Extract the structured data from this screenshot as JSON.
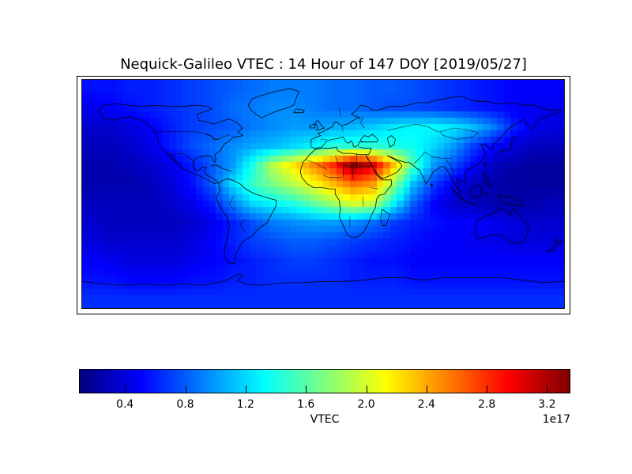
{
  "chart": {
    "title": "Nequick-Galileo VTEC : 14 Hour of 147 DOY [2019/05/27]",
    "colorbar": {
      "label": "VTEC",
      "exponent": "1e17",
      "tick_labels": [
        "0.4",
        "0.8",
        "1.2",
        "1.6",
        "2.0",
        "2.4",
        "2.8",
        "3.2"
      ],
      "vmin": 0.1,
      "vmax": 3.35,
      "colormap": "jet"
    }
  },
  "chart_data": {
    "type": "heatmap",
    "title": "Nequick-Galileo VTEC : 14 Hour of 147 DOY [2019/05/27]",
    "description": "Global ionospheric vertical TEC map (pcolormesh over world coastlines), values in 1e17 electrons/m^2",
    "legend_position": "bottom horizontal colorbar",
    "colorbar_label": "VTEC",
    "colorbar_scale": "1e17",
    "colorbar_ticks": [
      0.4,
      0.8,
      1.2,
      1.6,
      2.0,
      2.4,
      2.8,
      3.2
    ],
    "value_range": [
      0.1,
      3.35
    ],
    "map_extent": {
      "lon": [
        -180,
        180
      ],
      "lat": [
        -90,
        90
      ]
    },
    "grid": {
      "units": "1e17",
      "lon_centers_start": -172.5,
      "lon_step": 15,
      "lat_centers_start": 82.5,
      "lat_step": -15,
      "values": [
        [
          0.55,
          0.55,
          0.6,
          0.6,
          0.65,
          0.7,
          0.75,
          0.8,
          0.85,
          0.9,
          0.9,
          0.9,
          0.85,
          0.85,
          0.8,
          0.8,
          0.75,
          0.7,
          0.65,
          0.6,
          0.55,
          0.5,
          0.5,
          0.5
        ],
        [
          0.45,
          0.5,
          0.55,
          0.6,
          0.65,
          0.7,
          0.75,
          0.85,
          0.9,
          0.95,
          0.95,
          0.9,
          0.85,
          0.85,
          0.8,
          0.75,
          0.75,
          0.7,
          0.65,
          0.6,
          0.55,
          0.5,
          0.45,
          0.45
        ],
        [
          0.35,
          0.35,
          0.4,
          0.5,
          0.6,
          0.7,
          0.75,
          0.8,
          0.9,
          0.95,
          1.0,
          1.0,
          1.05,
          1.1,
          1.15,
          1.25,
          1.3,
          1.3,
          1.25,
          1.1,
          0.9,
          0.6,
          0.45,
          0.4
        ],
        [
          0.3,
          0.3,
          0.35,
          0.45,
          0.6,
          0.75,
          0.85,
          0.95,
          1.05,
          1.1,
          1.2,
          1.3,
          1.45,
          1.45,
          1.45,
          1.4,
          1.35,
          1.2,
          1.0,
          0.7,
          0.5,
          0.4,
          0.3,
          0.3
        ],
        [
          0.25,
          0.25,
          0.3,
          0.35,
          0.45,
          0.6,
          0.8,
          1.0,
          1.4,
          1.9,
          2.2,
          2.5,
          2.8,
          3.35,
          3.05,
          2.35,
          1.55,
          1.0,
          0.75,
          0.5,
          0.3,
          0.25,
          0.2,
          0.2
        ],
        [
          0.25,
          0.25,
          0.25,
          0.3,
          0.4,
          0.55,
          0.8,
          1.2,
          1.5,
          1.7,
          1.9,
          2.1,
          2.35,
          2.6,
          2.45,
          1.8,
          1.1,
          0.7,
          0.45,
          0.3,
          0.25,
          0.2,
          0.2,
          0.2
        ],
        [
          0.3,
          0.3,
          0.3,
          0.3,
          0.35,
          0.45,
          0.6,
          0.9,
          1.2,
          1.3,
          1.4,
          1.6,
          1.8,
          2.0,
          1.9,
          1.3,
          0.8,
          0.5,
          0.35,
          0.3,
          0.25,
          0.25,
          0.25,
          0.3
        ],
        [
          0.35,
          0.3,
          0.3,
          0.3,
          0.3,
          0.35,
          0.45,
          0.6,
          0.75,
          0.9,
          0.95,
          1.0,
          1.0,
          0.95,
          0.85,
          0.7,
          0.6,
          0.55,
          0.5,
          0.5,
          0.45,
          0.4,
          0.35,
          0.35
        ],
        [
          0.4,
          0.35,
          0.35,
          0.35,
          0.35,
          0.4,
          0.5,
          0.6,
          0.7,
          0.75,
          0.8,
          0.8,
          0.75,
          0.7,
          0.65,
          0.6,
          0.55,
          0.5,
          0.5,
          0.45,
          0.45,
          0.4,
          0.4,
          0.4
        ],
        [
          0.5,
          0.45,
          0.4,
          0.4,
          0.4,
          0.45,
          0.5,
          0.55,
          0.6,
          0.65,
          0.7,
          0.7,
          0.65,
          0.6,
          0.55,
          0.55,
          0.5,
          0.5,
          0.5,
          0.5,
          0.5,
          0.5,
          0.5,
          0.5
        ],
        [
          0.55,
          0.55,
          0.5,
          0.5,
          0.5,
          0.55,
          0.55,
          0.6,
          0.6,
          0.65,
          0.65,
          0.65,
          0.65,
          0.6,
          0.6,
          0.6,
          0.55,
          0.55,
          0.55,
          0.55,
          0.55,
          0.55,
          0.55,
          0.55
        ],
        [
          0.65,
          0.65,
          0.65,
          0.65,
          0.65,
          0.65,
          0.65,
          0.65,
          0.65,
          0.65,
          0.65,
          0.65,
          0.65,
          0.65,
          0.65,
          0.65,
          0.65,
          0.65,
          0.65,
          0.65,
          0.65,
          0.65,
          0.65,
          0.65
        ]
      ]
    }
  }
}
